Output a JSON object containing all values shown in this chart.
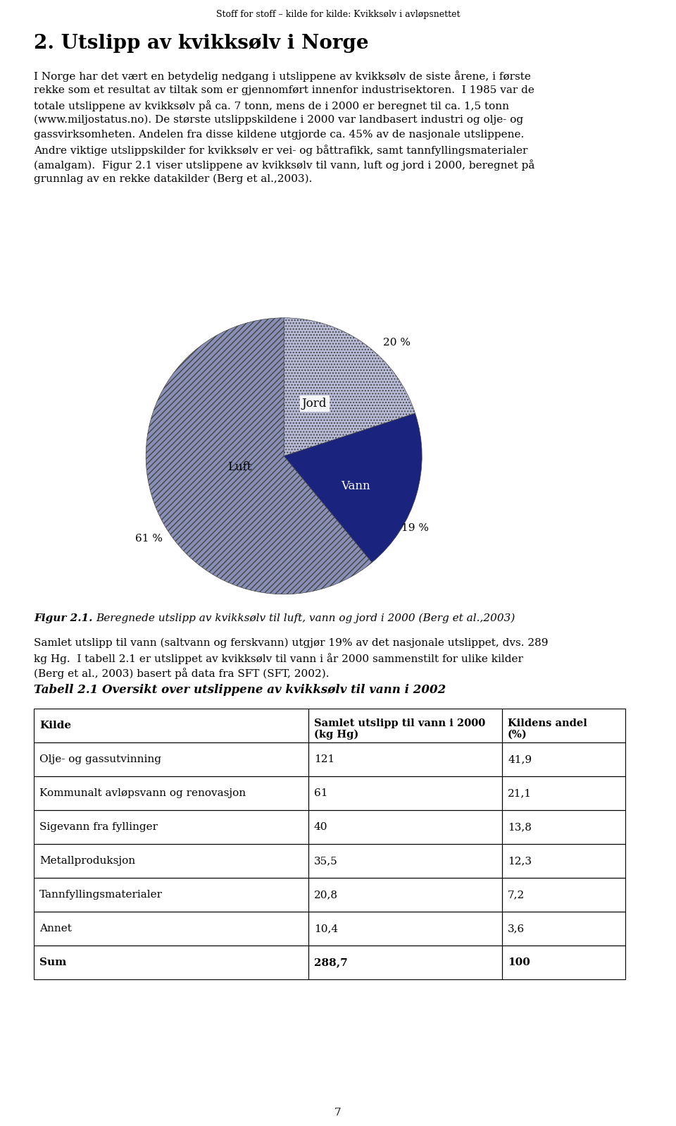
{
  "page_header": "Stoff for stoff – kilde for kilde: Kvikksølv i avløpsnettet",
  "section_title": "2. Utslipp av kvikksølv i Norge",
  "body_lines": [
    "I Norge har det vært en betydelig nedgang i utslippene av kvikksølv de siste årene, i første",
    "rekke som et resultat av tiltak som er gjennomført innenfor industrisektoren.  I 1985 var de",
    "totale utslippene av kvikksølv på ca. 7 tonn, mens de i 2000 er beregnet til ca. 1,5 tonn",
    "(www.miljostatus.no). De største utslippskildene i 2000 var landbasert industri og olje- og",
    "gassvirksomheten. Andelen fra disse kildene utgjorde ca. 45% av de nasjonale utslippene.",
    "Andre viktige utslippskilder for kvikksølv er vei- og båttrafikk, samt tannfyllingsmaterialer",
    "(amalgam).  Figur 2.1 viser utslippene av kvikksølv til vann, luft og jord i 2000, beregnet på",
    "grunnlag av en rekke datakilder (Berg et al.,2003)."
  ],
  "pie_slices": [
    20,
    19,
    61
  ],
  "pie_labels": [
    "Jord",
    "Vann",
    "Luft"
  ],
  "pie_colors": [
    "#b8bcd8",
    "#1a237e",
    "#8890b8"
  ],
  "pie_hatches": [
    "....",
    "",
    "////"
  ],
  "pie_pct": [
    "20 %",
    "19 %",
    "61 %"
  ],
  "pie_label_colors": [
    "black",
    "white",
    "black"
  ],
  "after_fig_lines": [
    "Samlet utslipp til vann (saltvann og ferskvann) utgjør 19% av det nasjonale utslippet, dvs. 289",
    "kg Hg.  I tabell 2.1 er utslippet av kvikksølv til vann i år 2000 sammenstilt for ulike kilder",
    "(Berg et al., 2003) basert på data fra SFT (SFT, 2002)."
  ],
  "table_title": "Tabell 2.1 Oversikt over utslippene av kvikksølv til vann i 2002",
  "table_headers": [
    "Kilde",
    "Samlet utslipp til vann i 2000\n(kg Hg)",
    "Kildens andel\n(%)"
  ],
  "table_rows": [
    [
      "Olje- og gassutvinning",
      "121",
      "41,9"
    ],
    [
      "Kommunalt avløpsvann og renovasjon",
      "61",
      "21,1"
    ],
    [
      "Sigevann fra fyllinger",
      "40",
      "13,8"
    ],
    [
      "Metallproduksjon",
      "35,5",
      "12,3"
    ],
    [
      "Tannfyllingsmaterialer",
      "20,8",
      "7,2"
    ],
    [
      "Annet",
      "10,4",
      "3,6"
    ],
    [
      "Sum",
      "288,7",
      "100"
    ]
  ],
  "page_number": "7",
  "background_color": "#ffffff"
}
